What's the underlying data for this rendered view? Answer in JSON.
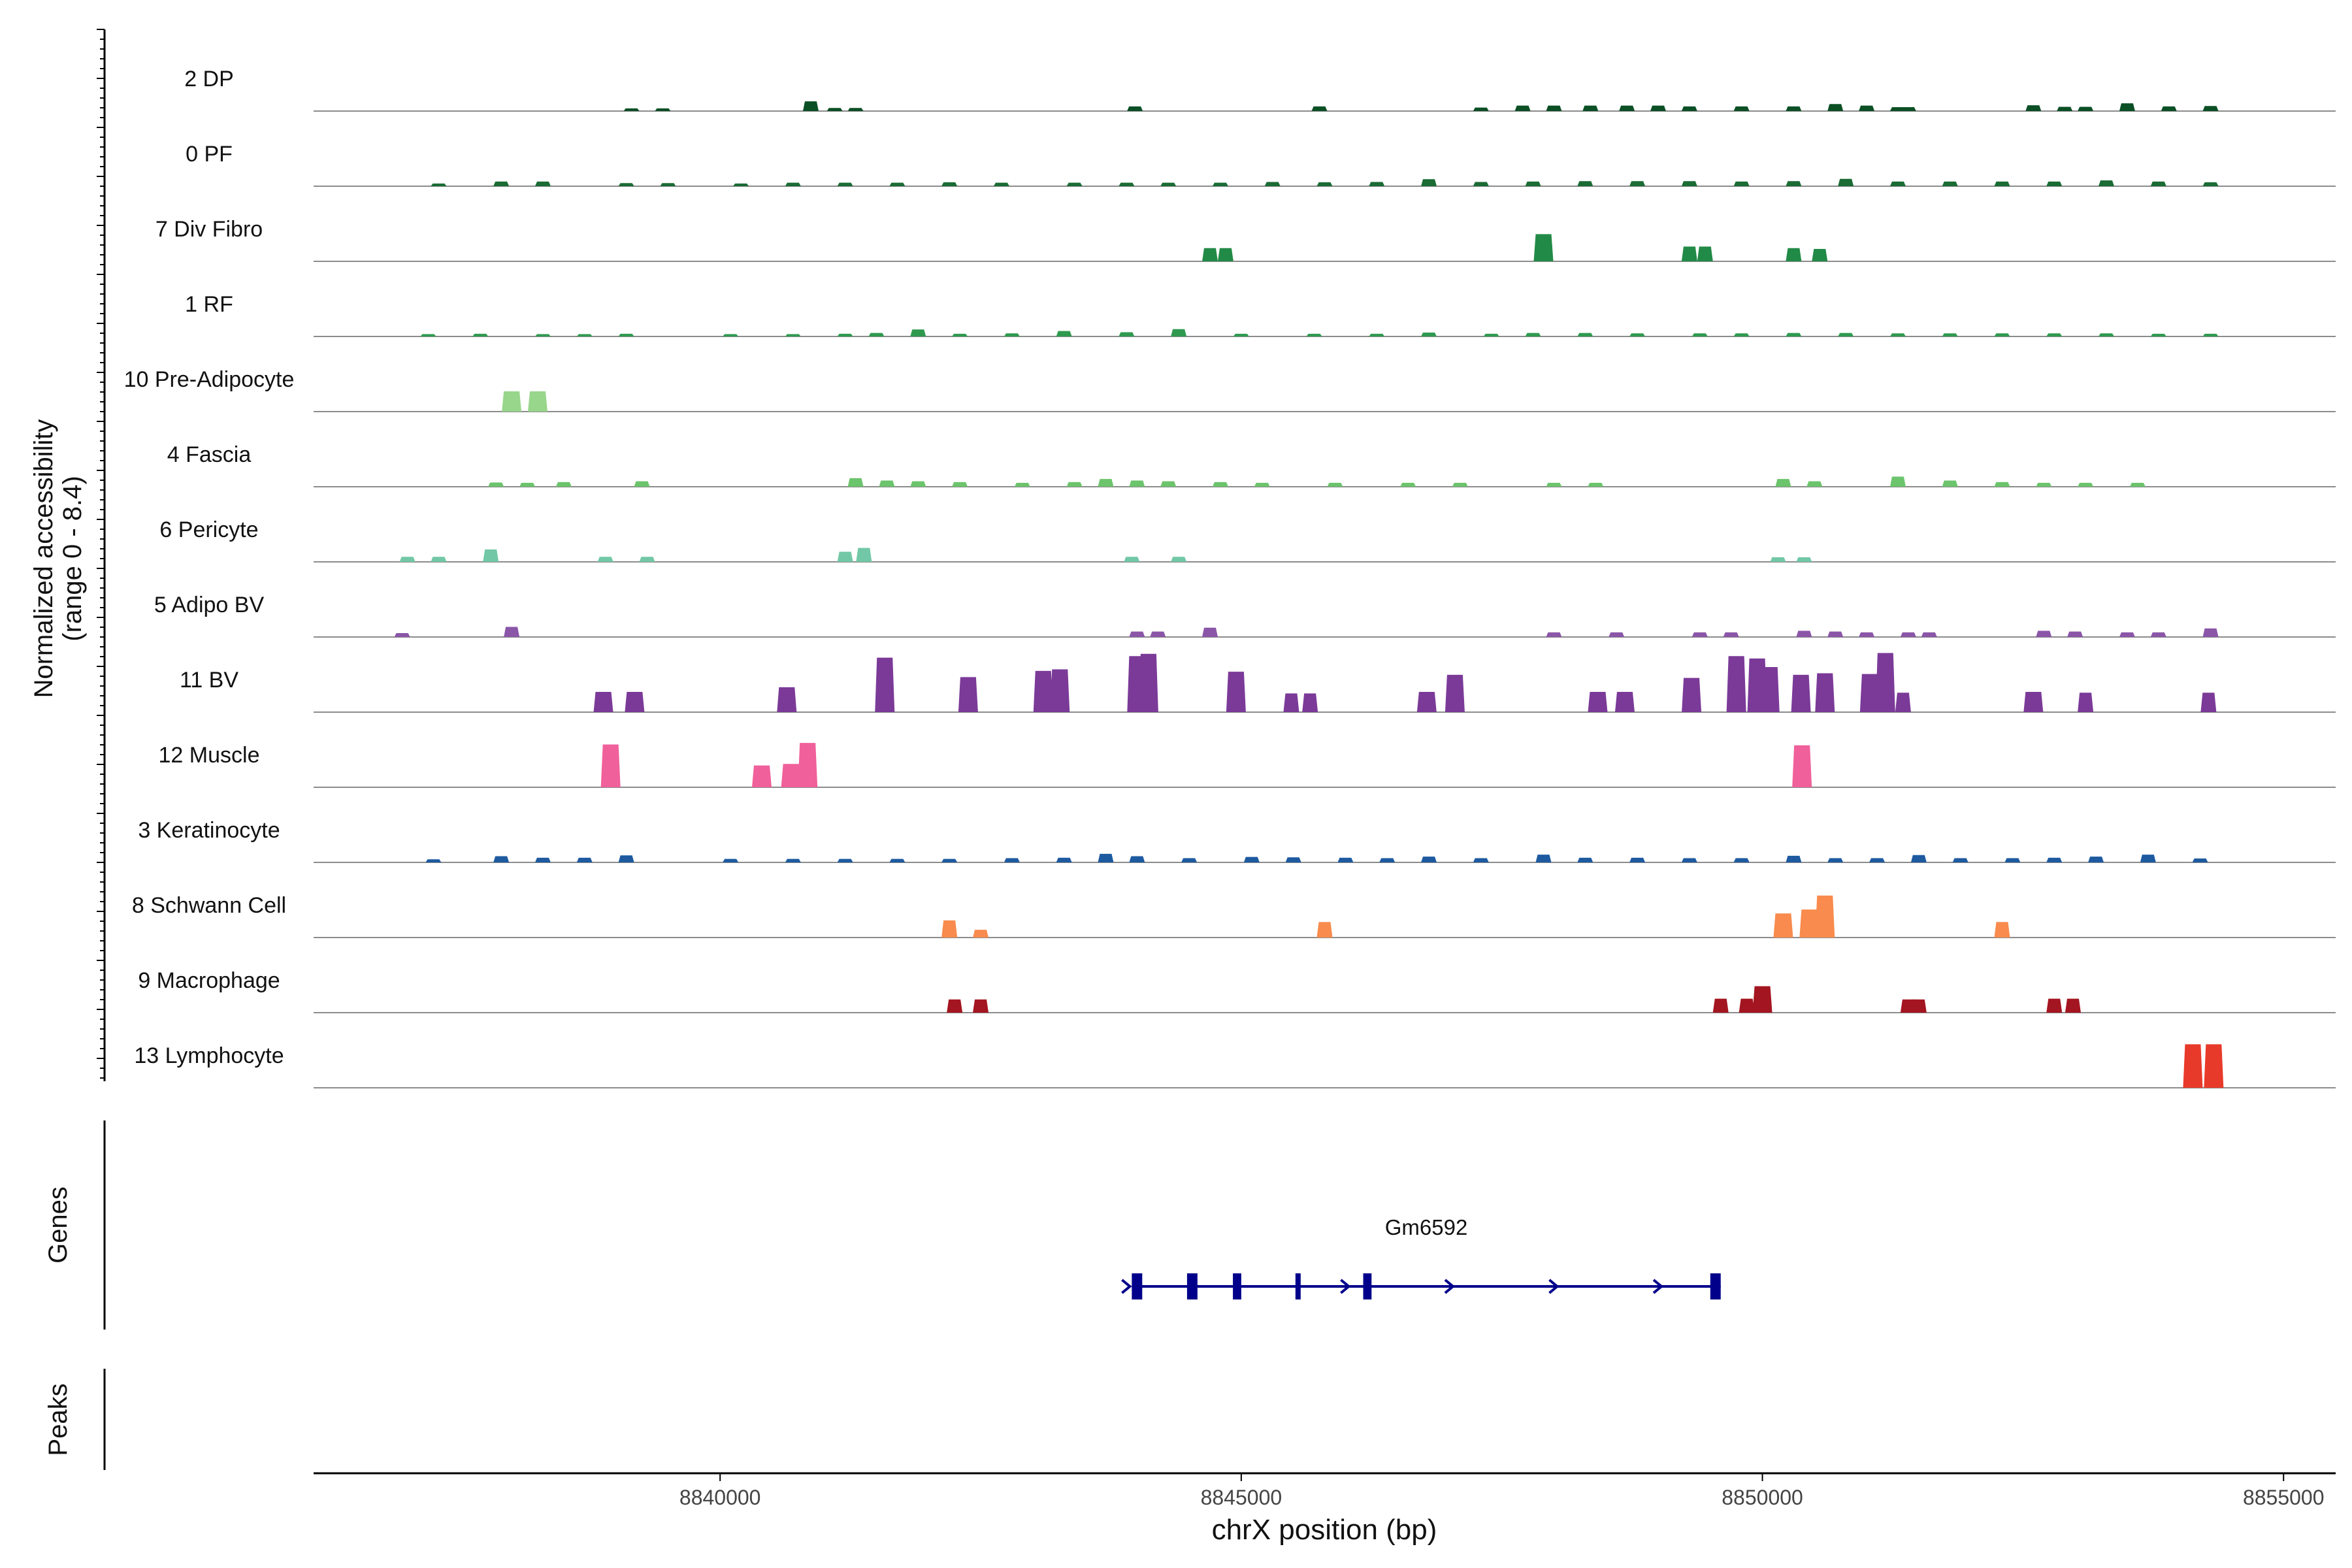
{
  "chart_data": {
    "type": "area",
    "title": "",
    "ylabel_line1": "Normalized accessibility",
    "ylabel_line2": "(range 0 - 8.4)",
    "xlabel": "chrX position (bp)",
    "xlim": [
      8836100,
      8855500
    ],
    "ylim": [
      0,
      8.4
    ],
    "xticks": [
      {
        "value": 8840000,
        "label": "8840000"
      },
      {
        "value": 8845000,
        "label": "8845000"
      },
      {
        "value": 8850000,
        "label": "8850000"
      },
      {
        "value": 8855000,
        "label": "8855000"
      }
    ],
    "series": [
      {
        "name": "2 DP",
        "color": "#0b4f25",
        "peaks": [
          [
            8839150,
            0.35
          ],
          [
            8839450,
            0.35
          ],
          [
            8840870,
            1.25
          ],
          [
            8841100,
            0.4
          ],
          [
            8841300,
            0.4
          ],
          [
            8843980,
            0.6
          ],
          [
            8845750,
            0.6
          ],
          [
            8847300,
            0.45
          ],
          [
            8847700,
            0.7
          ],
          [
            8848000,
            0.7
          ],
          [
            8848350,
            0.7
          ],
          [
            8848700,
            0.7
          ],
          [
            8849000,
            0.7
          ],
          [
            8849300,
            0.6
          ],
          [
            8849800,
            0.6
          ],
          [
            8850300,
            0.6
          ],
          [
            8850700,
            0.9
          ],
          [
            8851000,
            0.7
          ],
          [
            8851300,
            0.5
          ],
          [
            8851400,
            0.5
          ],
          [
            8852600,
            0.75
          ],
          [
            8852900,
            0.55
          ],
          [
            8853100,
            0.55
          ],
          [
            8853500,
            1.0
          ],
          [
            8853900,
            0.6
          ],
          [
            8854300,
            0.65
          ]
        ]
      },
      {
        "name": "0 PF",
        "color": "#1a6b34",
        "peaks": [
          [
            8837300,
            0.35
          ],
          [
            8837900,
            0.6
          ],
          [
            8838300,
            0.6
          ],
          [
            8839100,
            0.4
          ],
          [
            8839500,
            0.4
          ],
          [
            8840200,
            0.35
          ],
          [
            8840700,
            0.45
          ],
          [
            8841200,
            0.45
          ],
          [
            8841700,
            0.45
          ],
          [
            8842200,
            0.5
          ],
          [
            8842700,
            0.45
          ],
          [
            8843400,
            0.45
          ],
          [
            8843900,
            0.45
          ],
          [
            8844300,
            0.45
          ],
          [
            8844800,
            0.45
          ],
          [
            8845300,
            0.55
          ],
          [
            8845800,
            0.5
          ],
          [
            8846300,
            0.55
          ],
          [
            8846800,
            0.9
          ],
          [
            8847300,
            0.55
          ],
          [
            8847800,
            0.6
          ],
          [
            8848300,
            0.65
          ],
          [
            8848800,
            0.65
          ],
          [
            8849300,
            0.65
          ],
          [
            8849800,
            0.6
          ],
          [
            8850300,
            0.65
          ],
          [
            8850800,
            0.95
          ],
          [
            8851300,
            0.6
          ],
          [
            8851800,
            0.6
          ],
          [
            8852300,
            0.6
          ],
          [
            8852800,
            0.6
          ],
          [
            8853300,
            0.75
          ],
          [
            8853800,
            0.6
          ],
          [
            8854300,
            0.5
          ]
        ]
      },
      {
        "name": "7 Div Fibro",
        "color": "#228a47",
        "peaks": [
          [
            8844700,
            1.7
          ],
          [
            8844850,
            1.7
          ],
          [
            8847900,
            3.5
          ],
          [
            8849300,
            1.9
          ],
          [
            8849450,
            1.9
          ],
          [
            8850300,
            1.7
          ],
          [
            8850550,
            1.6
          ]
        ]
      },
      {
        "name": "1 RF",
        "color": "#2f9a4f",
        "peaks": [
          [
            8837200,
            0.3
          ],
          [
            8837700,
            0.35
          ],
          [
            8838300,
            0.3
          ],
          [
            8838700,
            0.3
          ],
          [
            8839100,
            0.35
          ],
          [
            8840100,
            0.3
          ],
          [
            8840700,
            0.3
          ],
          [
            8841200,
            0.35
          ],
          [
            8841500,
            0.45
          ],
          [
            8841900,
            0.9
          ],
          [
            8842300,
            0.35
          ],
          [
            8842800,
            0.4
          ],
          [
            8843300,
            0.7
          ],
          [
            8843900,
            0.55
          ],
          [
            8844400,
            0.95
          ],
          [
            8845000,
            0.35
          ],
          [
            8845700,
            0.35
          ],
          [
            8846300,
            0.35
          ],
          [
            8846800,
            0.5
          ],
          [
            8847400,
            0.35
          ],
          [
            8847800,
            0.45
          ],
          [
            8848300,
            0.45
          ],
          [
            8848800,
            0.4
          ],
          [
            8849400,
            0.4
          ],
          [
            8849800,
            0.4
          ],
          [
            8850300,
            0.45
          ],
          [
            8850800,
            0.45
          ],
          [
            8851300,
            0.4
          ],
          [
            8851800,
            0.4
          ],
          [
            8852300,
            0.4
          ],
          [
            8852800,
            0.4
          ],
          [
            8853300,
            0.4
          ],
          [
            8853800,
            0.35
          ],
          [
            8854300,
            0.35
          ]
        ]
      },
      {
        "name": "10 Pre-Adipocyte",
        "color": "#98d68b",
        "peaks": [
          [
            8838000,
            2.6
          ],
          [
            8838250,
            2.6
          ]
        ]
      },
      {
        "name": "4 Fascia",
        "color": "#6cc46c",
        "peaks": [
          [
            8837850,
            0.55
          ],
          [
            8838150,
            0.5
          ],
          [
            8838500,
            0.6
          ],
          [
            8839250,
            0.7
          ],
          [
            8841300,
            1.1
          ],
          [
            8841600,
            0.8
          ],
          [
            8841900,
            0.7
          ],
          [
            8842300,
            0.6
          ],
          [
            8842900,
            0.5
          ],
          [
            8843400,
            0.6
          ],
          [
            8843700,
            1.0
          ],
          [
            8844000,
            0.8
          ],
          [
            8844300,
            0.7
          ],
          [
            8844800,
            0.6
          ],
          [
            8845200,
            0.5
          ],
          [
            8845900,
            0.5
          ],
          [
            8846600,
            0.5
          ],
          [
            8847100,
            0.5
          ],
          [
            8848000,
            0.5
          ],
          [
            8848400,
            0.5
          ],
          [
            8850200,
            1.0
          ],
          [
            8850500,
            0.7
          ],
          [
            8851300,
            1.3
          ],
          [
            8851800,
            0.8
          ],
          [
            8852300,
            0.6
          ],
          [
            8852700,
            0.5
          ],
          [
            8853100,
            0.5
          ],
          [
            8853600,
            0.5
          ]
        ]
      },
      {
        "name": "6 Pericyte",
        "color": "#72c8a6",
        "peaks": [
          [
            8837000,
            0.65
          ],
          [
            8837300,
            0.65
          ],
          [
            8837800,
            1.6
          ],
          [
            8838900,
            0.65
          ],
          [
            8839300,
            0.65
          ],
          [
            8841200,
            1.3
          ],
          [
            8841380,
            1.8
          ],
          [
            8843950,
            0.65
          ],
          [
            8844400,
            0.65
          ],
          [
            8850150,
            0.6
          ],
          [
            8850400,
            0.6
          ]
        ]
      },
      {
        "name": "5 Adipo BV",
        "color": "#8b56a8",
        "peaks": [
          [
            8836950,
            0.5
          ],
          [
            8838000,
            1.3
          ],
          [
            8844000,
            0.7
          ],
          [
            8844200,
            0.7
          ],
          [
            8844700,
            1.2
          ],
          [
            8848000,
            0.6
          ],
          [
            8848600,
            0.6
          ],
          [
            8849400,
            0.6
          ],
          [
            8849700,
            0.6
          ],
          [
            8850400,
            0.8
          ],
          [
            8850700,
            0.7
          ],
          [
            8851000,
            0.6
          ],
          [
            8851400,
            0.6
          ],
          [
            8851600,
            0.6
          ],
          [
            8852700,
            0.8
          ],
          [
            8853000,
            0.7
          ],
          [
            8853500,
            0.6
          ],
          [
            8853800,
            0.6
          ],
          [
            8854300,
            1.1
          ]
        ]
      },
      {
        "name": "11 BV",
        "color": "#7b3a98",
        "peaks": [
          [
            8838880,
            2.6
          ],
          [
            8839180,
            2.6
          ],
          [
            8840640,
            3.2
          ],
          [
            8841580,
            7.0
          ],
          [
            8842380,
            4.5
          ],
          [
            8843100,
            5.3
          ],
          [
            8843260,
            5.5
          ],
          [
            8844000,
            7.2
          ],
          [
            8844110,
            7.5
          ],
          [
            8844950,
            5.2
          ],
          [
            8845480,
            2.4
          ],
          [
            8845660,
            2.4
          ],
          [
            8846780,
            2.6
          ],
          [
            8847050,
            4.8
          ],
          [
            8848420,
            2.6
          ],
          [
            8848680,
            2.6
          ],
          [
            8849320,
            4.4
          ],
          [
            8849750,
            7.2
          ],
          [
            8849950,
            6.9
          ],
          [
            8850070,
            5.8
          ],
          [
            8850370,
            4.8
          ],
          [
            8850600,
            5.0
          ],
          [
            8851030,
            4.9
          ],
          [
            8851180,
            7.6
          ],
          [
            8851350,
            2.5
          ],
          [
            8852600,
            2.6
          ],
          [
            8853100,
            2.5
          ],
          [
            8854280,
            2.5
          ]
        ]
      },
      {
        "name": "12 Muscle",
        "color": "#f0609b",
        "peaks": [
          [
            8838950,
            5.5
          ],
          [
            8840400,
            2.8
          ],
          [
            8840680,
            3.0
          ],
          [
            8840840,
            5.7
          ],
          [
            8850380,
            5.4
          ]
        ]
      },
      {
        "name": "3 Keratinocyte",
        "color": "#1d5aa0",
        "peaks": [
          [
            8837250,
            0.4
          ],
          [
            8837900,
            0.8
          ],
          [
            8838300,
            0.6
          ],
          [
            8838700,
            0.6
          ],
          [
            8839100,
            0.9
          ],
          [
            8840100,
            0.45
          ],
          [
            8840700,
            0.45
          ],
          [
            8841200,
            0.45
          ],
          [
            8841700,
            0.45
          ],
          [
            8842200,
            0.45
          ],
          [
            8842800,
            0.55
          ],
          [
            8843300,
            0.6
          ],
          [
            8843700,
            1.1
          ],
          [
            8844000,
            0.8
          ],
          [
            8844500,
            0.55
          ],
          [
            8845100,
            0.7
          ],
          [
            8845500,
            0.65
          ],
          [
            8846000,
            0.6
          ],
          [
            8846400,
            0.55
          ],
          [
            8846800,
            0.75
          ],
          [
            8847300,
            0.55
          ],
          [
            8847900,
            1.0
          ],
          [
            8848300,
            0.6
          ],
          [
            8848800,
            0.6
          ],
          [
            8849300,
            0.55
          ],
          [
            8849800,
            0.55
          ],
          [
            8850300,
            0.85
          ],
          [
            8850700,
            0.55
          ],
          [
            8851100,
            0.55
          ],
          [
            8851500,
            0.95
          ],
          [
            8851900,
            0.55
          ],
          [
            8852400,
            0.55
          ],
          [
            8852800,
            0.6
          ],
          [
            8853200,
            0.75
          ],
          [
            8853700,
            1.0
          ],
          [
            8854200,
            0.5
          ]
        ]
      },
      {
        "name": "8 Schwann Cell",
        "color": "#f88b4d",
        "peaks": [
          [
            8842200,
            2.2
          ],
          [
            8842500,
            1.0
          ],
          [
            8845800,
            2.0
          ],
          [
            8850200,
            3.1
          ],
          [
            8850450,
            3.6
          ],
          [
            8850600,
            5.4
          ],
          [
            8852300,
            2.0
          ]
        ]
      },
      {
        "name": "9 Macrophage",
        "color": "#a31520",
        "peaks": [
          [
            8842250,
            1.7
          ],
          [
            8842500,
            1.7
          ],
          [
            8849600,
            1.8
          ],
          [
            8849850,
            1.8
          ],
          [
            8850000,
            3.4
          ],
          [
            8851400,
            1.7
          ],
          [
            8851500,
            1.7
          ],
          [
            8852800,
            1.8
          ],
          [
            8852980,
            1.8
          ]
        ]
      },
      {
        "name": "13 Lymphocyte",
        "color": "#e83a2a",
        "peaks": [
          [
            8854130,
            5.6
          ],
          [
            8854330,
            5.6
          ]
        ]
      }
    ],
    "genes_label": "Genes",
    "peaks_label": "Peaks",
    "gene": {
      "name": "Gm6592",
      "start": 8843950,
      "end": 8849600,
      "strand": "+",
      "color": "#00008b",
      "exons": [
        [
          8843950,
          8844050
        ],
        [
          8844480,
          8844580
        ],
        [
          8844920,
          8845000
        ],
        [
          8845520,
          8845570
        ],
        [
          8846170,
          8846250
        ],
        [
          8849500,
          8849600
        ]
      ],
      "arrows": [
        8843900,
        8846000,
        8847000,
        8848000,
        8849000
      ]
    }
  }
}
